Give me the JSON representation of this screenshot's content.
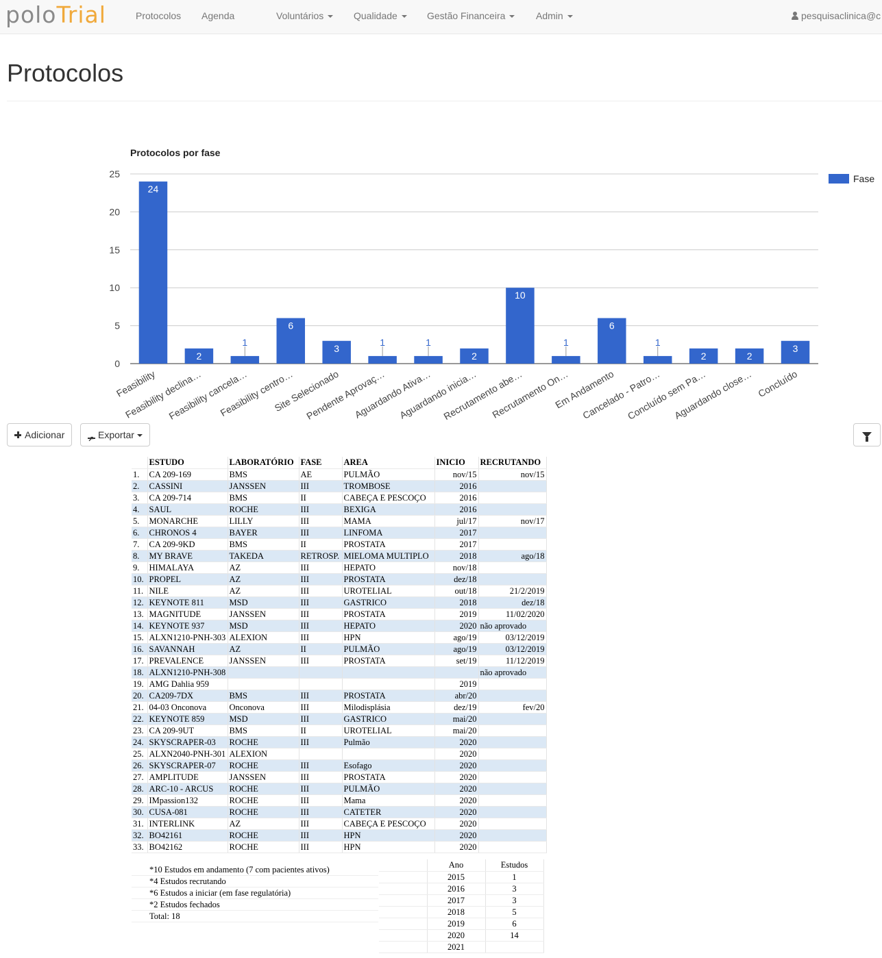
{
  "brand": {
    "part1": "polo",
    "part2": "Trial"
  },
  "nav": {
    "items": [
      {
        "label": "Protocolos",
        "dropdown": false
      },
      {
        "label": "Agenda",
        "dropdown": false
      },
      {
        "label": "Voluntários",
        "dropdown": true
      },
      {
        "label": "Qualidade",
        "dropdown": true
      },
      {
        "label": "Gestão Financeira",
        "dropdown": true
      },
      {
        "label": "Admin",
        "dropdown": true
      }
    ],
    "user": "pesquisaclinica@c"
  },
  "page": {
    "title": "Protocolos"
  },
  "colors": {
    "bar": "#3366cc",
    "navbar_bg": "#f8f8f8"
  },
  "chart_data": {
    "type": "bar",
    "title": "Protocolos por fase",
    "legend": {
      "position": "right",
      "entries": [
        "Fase"
      ]
    },
    "categories": [
      "Feasibility",
      "Feasibility declina…",
      "Feasibility cancela…",
      "Feasibility centro…",
      "Site Selecionado",
      "Pendente Aprovaç…",
      "Aguardando Ativa…",
      "Aguardando inicia…",
      "Recrutamento abe…",
      "Recrutamento On…",
      "Em Andamento",
      "Cancelado - Patro…",
      "Concluído sem Pa…",
      "Aguardando close…",
      "Concluído"
    ],
    "series": [
      {
        "name": "Fase",
        "values": [
          24,
          2,
          1,
          6,
          3,
          1,
          1,
          2,
          10,
          1,
          6,
          1,
          2,
          2,
          3
        ]
      }
    ],
    "ylim": [
      0,
      25
    ],
    "yticks": [
      0,
      5,
      10,
      15,
      20,
      25
    ],
    "grid": true
  },
  "toolbar": {
    "add_label": "Adicionar",
    "export_label": "Exportar"
  },
  "sheet": {
    "headers": [
      "",
      "ESTUDO",
      "LABORATÓRIO",
      "FASE",
      "AREA",
      "INICIO",
      "RECRUTANDO"
    ],
    "rows": [
      [
        "1.",
        "CA 209-169",
        "BMS",
        "AE",
        "PULMÃO",
        "nov/15",
        "nov/15"
      ],
      [
        "2.",
        "CASSINI",
        "JANSSEN",
        "III",
        "TROMBOSE",
        "2016",
        ""
      ],
      [
        "3.",
        "CA 209-714",
        "BMS",
        "II",
        "CABEÇA E PESCOÇO",
        "2016",
        ""
      ],
      [
        "4.",
        "SAUL",
        "ROCHE",
        "III",
        "BEXIGA",
        "2016",
        ""
      ],
      [
        "5.",
        "MONARCHE",
        "LILLY",
        "III",
        "MAMA",
        "jul/17",
        "nov/17"
      ],
      [
        "6.",
        "CHRONOS 4",
        "BAYER",
        "III",
        "LINFOMA",
        "2017",
        ""
      ],
      [
        "7.",
        "CA 209-9KD",
        "BMS",
        "II",
        "PROSTATA",
        "2017",
        ""
      ],
      [
        "8.",
        "MY BRAVE",
        "TAKEDA",
        "RETROSP.",
        "MIELOMA MULTIPLO",
        "2018",
        "ago/18"
      ],
      [
        "9.",
        "HIMALAYA",
        "AZ",
        "III",
        "HEPATO",
        "nov/18",
        ""
      ],
      [
        "10.",
        "PROPEL",
        "AZ",
        "III",
        "PROSTATA",
        "dez/18",
        ""
      ],
      [
        "11.",
        "NILE",
        "AZ",
        "III",
        "UROTELIAL",
        "out/18",
        "21/2/2019"
      ],
      [
        "12.",
        "KEYNOTE 811",
        "MSD",
        "III",
        "GASTRICO",
        "2018",
        "dez/18"
      ],
      [
        "13.",
        "MAGNITUDE",
        "JANSSEN",
        "III",
        "PROSTATA",
        "2019",
        "11/02/2020"
      ],
      [
        "14.",
        "KEYNOTE 937",
        "MSD",
        "III",
        "HEPATO",
        "2020",
        "não aprovado"
      ],
      [
        "15.",
        "ALXN1210-PNH-303",
        "ALEXION",
        "III",
        "HPN",
        "ago/19",
        "03/12/2019"
      ],
      [
        "16.",
        "SAVANNAH",
        "AZ",
        "II",
        "PULMÃO",
        "ago/19",
        "03/12/2019"
      ],
      [
        "17.",
        "PREVALENCE",
        "JANSSEN",
        "III",
        "PROSTATA",
        "set/19",
        "11/12/2019"
      ],
      [
        "18.",
        "ALXN1210-PNH-308",
        "",
        "",
        "",
        "",
        "não aprovado"
      ],
      [
        "19.",
        "AMG Dahlia 959",
        "",
        "",
        "",
        "2019",
        ""
      ],
      [
        "20.",
        "CA209-7DX",
        "BMS",
        "III",
        "PROSTATA",
        "abr/20",
        ""
      ],
      [
        "21.",
        "04-03 Onconova",
        "Onconova",
        "III",
        "Milodisplásia",
        "dez/19",
        "fev/20"
      ],
      [
        "22.",
        "KEYNOTE 859",
        "MSD",
        "III",
        "GASTRICO",
        "mai/20",
        ""
      ],
      [
        "23.",
        "CA 209-9UT",
        "BMS",
        "II",
        "UROTELIAL",
        "mai/20",
        ""
      ],
      [
        "24.",
        "SKYSCRAPER-03",
        "ROCHE",
        "III",
        "Pulmão",
        "2020",
        ""
      ],
      [
        "25.",
        "ALXN2040-PNH-301",
        "ALEXION",
        "",
        "",
        "2020",
        ""
      ],
      [
        "26.",
        "SKYSCRAPER-07",
        "ROCHE",
        "III",
        "Esofago",
        "2020",
        ""
      ],
      [
        "27.",
        "AMPLITUDE",
        "JANSSEN",
        "III",
        "PROSTATA",
        "2020",
        ""
      ],
      [
        "28.",
        "ARC-10 - ARCUS",
        "ROCHE",
        "III",
        "PULMÃO",
        "2020",
        ""
      ],
      [
        "29.",
        "IMpassion132",
        "ROCHE",
        "III",
        "Mama",
        "2020",
        ""
      ],
      [
        "30.",
        "CUSA-081",
        "ROCHE",
        "III",
        "CATETER",
        "2020",
        ""
      ],
      [
        "31.",
        "INTERLINK",
        "AZ",
        "III",
        "CABEÇA E PESCOÇO",
        "2020",
        ""
      ],
      [
        "32.",
        "BO42161",
        "ROCHE",
        "III",
        "HPN",
        "2020",
        ""
      ],
      [
        "33.",
        "BO42162",
        "ROCHE",
        "III",
        "HPN",
        "2020",
        ""
      ]
    ],
    "notes": [
      "*10 Estudos em andamento (7 com pacientes ativos)",
      "*4 Estudos recrutando",
      "*6 Estudos a iniciar (em fase regulatória)",
      "*2 Estudos fechados",
      "Total: 18"
    ],
    "year_table": {
      "headers": [
        "Ano",
        "Estudos"
      ],
      "rows": [
        [
          "2015",
          "1"
        ],
        [
          "2016",
          "3"
        ],
        [
          "2017",
          "3"
        ],
        [
          "2018",
          "5"
        ],
        [
          "2019",
          "6"
        ],
        [
          "2020",
          "14"
        ],
        [
          "2021",
          ""
        ]
      ]
    }
  }
}
